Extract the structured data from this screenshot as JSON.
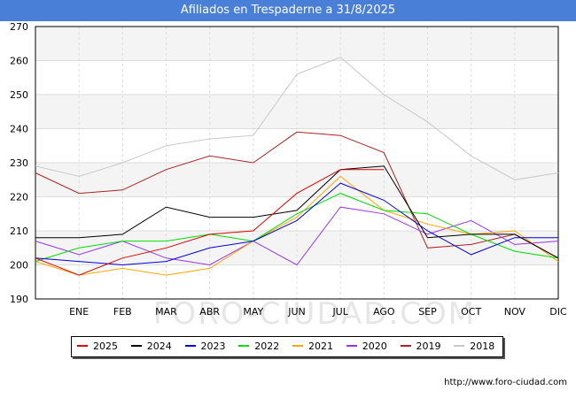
{
  "title": "Afiliados en Trespaderne a 31/8/2025",
  "watermark": "FORO-CIUDAD.COM",
  "credit": "http://www.foro-ciudad.com",
  "chart_data": {
    "type": "line",
    "title": "Afiliados en Trespaderne a 31/8/2025",
    "xlabel": "",
    "ylabel": "",
    "categories": [
      "",
      "ENE",
      "FEB",
      "MAR",
      "ABR",
      "MAY",
      "JUN",
      "JUL",
      "AGO",
      "SEP",
      "OCT",
      "NOV",
      "DIC"
    ],
    "ylim": [
      190,
      270
    ],
    "yticks": [
      190,
      200,
      210,
      220,
      230,
      240,
      250,
      260,
      270
    ],
    "grid": true,
    "legend_position": "bottom",
    "series": [
      {
        "name": "2025",
        "color": "#dd0000",
        "values": [
          202,
          197,
          202,
          205,
          209,
          210,
          221,
          228,
          228,
          null,
          null,
          null,
          null
        ]
      },
      {
        "name": "2024",
        "color": "#000000",
        "values": [
          208,
          208,
          209,
          217,
          214,
          214,
          216,
          228,
          229,
          208,
          209,
          209,
          202
        ]
      },
      {
        "name": "2023",
        "color": "#0000dd",
        "values": [
          202,
          201,
          200,
          201,
          205,
          207,
          213,
          224,
          219,
          210,
          203,
          208,
          208
        ]
      },
      {
        "name": "2022",
        "color": "#00dd00",
        "values": [
          201,
          205,
          207,
          207,
          209,
          207,
          215,
          221,
          216,
          215,
          209,
          204,
          202
        ]
      },
      {
        "name": "2021",
        "color": "#ffa500",
        "values": [
          201,
          197,
          199,
          197,
          199,
          207,
          214,
          226,
          216,
          212,
          209,
          210,
          201
        ]
      },
      {
        "name": "2020",
        "color": "#9933ee",
        "values": [
          207,
          203,
          207,
          202,
          200,
          207,
          200,
          217,
          215,
          209,
          213,
          206,
          207
        ]
      },
      {
        "name": "2019",
        "color": "#aa2222",
        "values": [
          227,
          221,
          222,
          228,
          232,
          230,
          239,
          238,
          233,
          205,
          206,
          209,
          202
        ]
      },
      {
        "name": "2018",
        "color": "#c8c8c8",
        "values": [
          229,
          226,
          230,
          235,
          237,
          238,
          256,
          261,
          250,
          242,
          232,
          225,
          227
        ]
      }
    ]
  }
}
